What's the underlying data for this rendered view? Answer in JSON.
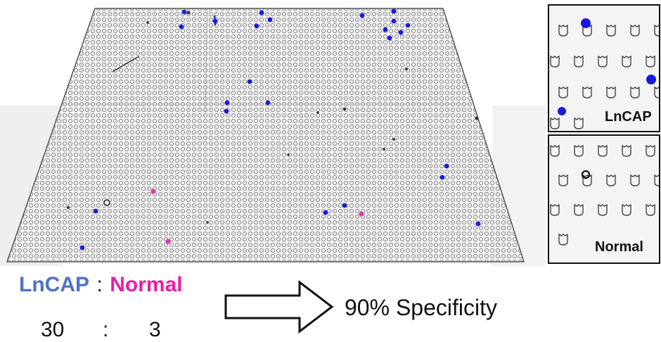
{
  "colors": {
    "lncap": "#4f72c4",
    "normal": "#e61ea8",
    "cell_blue": "#1a1adc",
    "cell_magenta": "#e038b0",
    "background": "#ffffff"
  },
  "insets": [
    {
      "label": "LnCAP"
    },
    {
      "label": "Normal"
    }
  ],
  "legend": {
    "lncap_label": "LnCAP",
    "separator": ":",
    "normal_label": "Normal"
  },
  "counts": {
    "lncap": "30",
    "separator": ":",
    "normal": "3"
  },
  "result": {
    "text": "90% Specificity",
    "arrow_icon": "right-arrow-icon"
  }
}
